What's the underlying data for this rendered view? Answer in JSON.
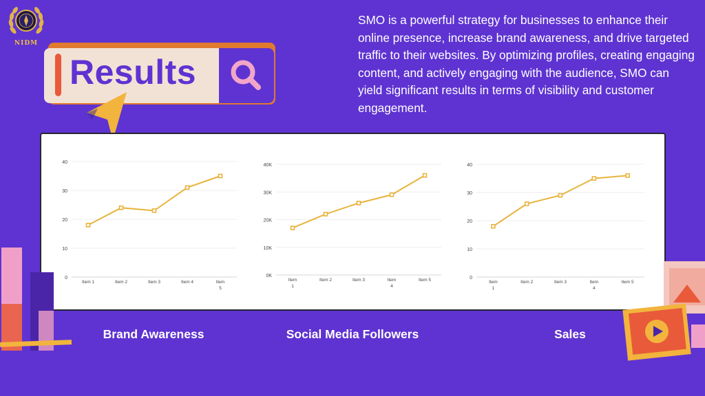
{
  "logo": {
    "text": "NIDM"
  },
  "banner": {
    "title": "Results"
  },
  "description": "SMO is a powerful strategy for businesses to enhance their online presence, increase brand awareness, and drive targeted traffic to their websites. By optimizing profiles, creating engaging content, and actively engaging with the audience, SMO can yield significant results in terms of visibility and customer engagement.",
  "colors": {
    "background": "#5e33d1",
    "line": "#e8b33c",
    "accent_orange": "#e07a2e"
  },
  "chart_data": [
    {
      "type": "line",
      "categories": [
        "Item 1",
        "Item 2",
        "Item 3",
        "Item 4",
        "Item 5"
      ],
      "category_lines": [
        [
          "Item 1"
        ],
        [
          "Item 2"
        ],
        [
          "Item 3"
        ],
        [
          "Item 4"
        ],
        [
          "Item",
          "5"
        ]
      ],
      "values": [
        18,
        24,
        23,
        31,
        35
      ],
      "yticks": [
        "0",
        "10",
        "20",
        "30",
        "40"
      ],
      "ylim": [
        0,
        40
      ],
      "title": "Brand Awareness"
    },
    {
      "type": "line",
      "categories": [
        "Item 1",
        "Item 2",
        "Item 3",
        "Item 4",
        "Item 5"
      ],
      "category_lines": [
        [
          "Item",
          "1"
        ],
        [
          "Item 2"
        ],
        [
          "Item 3"
        ],
        [
          "Item",
          "4"
        ],
        [
          "Item 5"
        ]
      ],
      "values": [
        17000,
        22000,
        26000,
        29000,
        36000
      ],
      "yticks": [
        "0K",
        "10K",
        "20K",
        "30K",
        "40K"
      ],
      "ylim": [
        0,
        40000
      ],
      "title": "Social Media Followers"
    },
    {
      "type": "line",
      "categories": [
        "Item 1",
        "Item 2",
        "Item 3",
        "Item 4",
        "Item 5"
      ],
      "category_lines": [
        [
          "Item",
          "1"
        ],
        [
          "Item 2"
        ],
        [
          "Item 3"
        ],
        [
          "Item",
          "4"
        ],
        [
          "Item 5"
        ]
      ],
      "values": [
        18,
        26,
        29,
        35,
        36
      ],
      "yticks": [
        "0",
        "10",
        "20",
        "30",
        "40"
      ],
      "ylim": [
        0,
        40
      ],
      "title": "Sales"
    }
  ]
}
